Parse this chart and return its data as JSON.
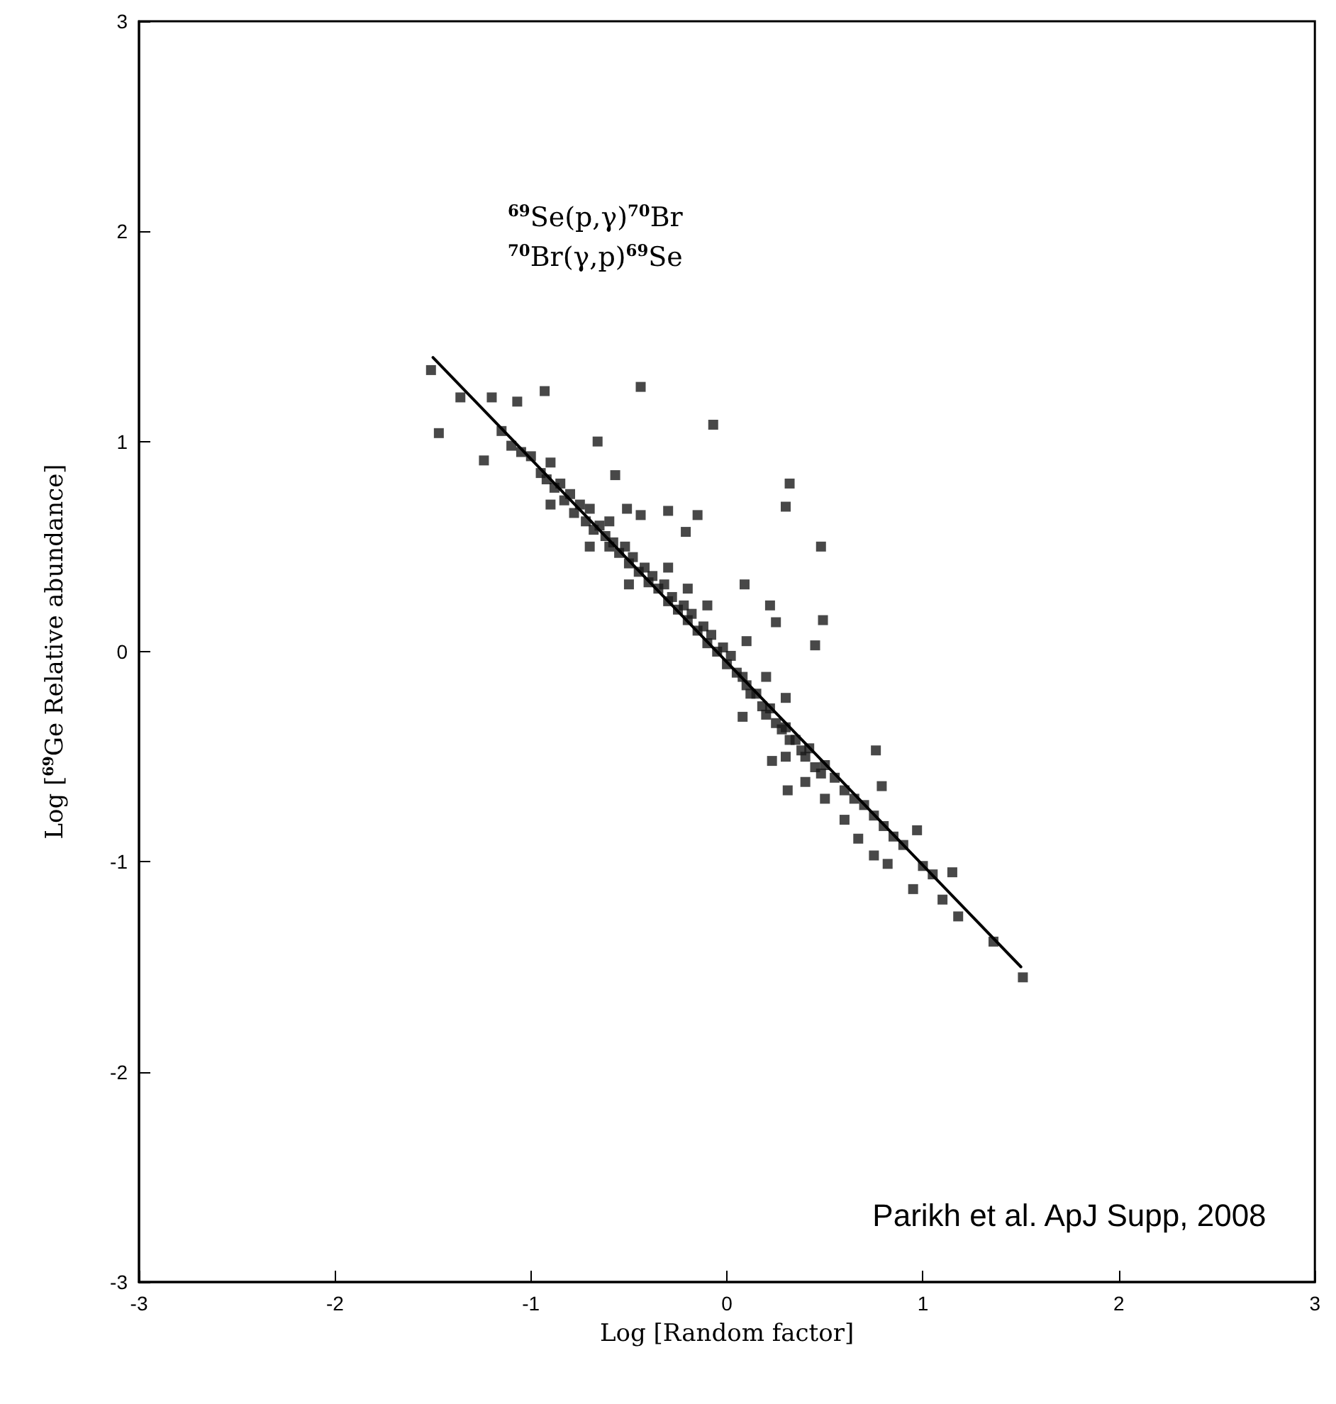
{
  "chart_data": {
    "type": "scatter",
    "xlabel": "Log [Random factor]",
    "ylabel": "Log [$^{69}$Ge Relative abundance]",
    "annotations": [
      "$^{69}$Se(p,γ)$^{70}$Br",
      "$^{70}$Br(γ,p)$^{69}$Se",
      "Parikh et al. ApJ Supp, 2008"
    ],
    "xlim": [
      -3,
      3
    ],
    "ylim": [
      -3,
      3
    ],
    "xticks": [
      -3,
      -2,
      -1,
      0,
      1,
      2,
      3
    ],
    "yticks": [
      -3,
      -2,
      -1,
      0,
      1,
      2,
      3
    ],
    "grid": false,
    "marker": "square",
    "series": [
      {
        "color": "#1a1a1a",
        "x": [
          -1.51,
          -1.47,
          -1.36,
          -1.2,
          -1.07,
          -0.93,
          -0.44,
          -0.07,
          -0.66,
          -1.24,
          -0.57,
          0.32,
          0.3,
          0.48,
          0.09,
          0.49,
          0.45,
          -0.3,
          -0.15,
          -0.21,
          -0.51,
          -0.44,
          0.22,
          0.25,
          0.76,
          0.08,
          0.23,
          0.31,
          0.79,
          0.97,
          0.67,
          0.75,
          0.82,
          0.95,
          1.15,
          1.1,
          1.18,
          1.36,
          1.51,
          -1.05,
          -1.0,
          -0.95,
          -0.92,
          -0.9,
          -0.88,
          -0.85,
          -0.83,
          -0.8,
          -0.78,
          -0.75,
          -0.72,
          -0.7,
          -0.68,
          -0.65,
          -0.62,
          -0.6,
          -0.58,
          -0.55,
          -0.52,
          -0.5,
          -0.48,
          -0.45,
          -0.42,
          -0.4,
          -0.38,
          -0.35,
          -0.32,
          -0.3,
          -0.28,
          -0.25,
          -0.22,
          -0.2,
          -0.18,
          -0.15,
          -0.12,
          -0.1,
          -0.08,
          -0.05,
          -0.02,
          0,
          0.02,
          0.05,
          0.08,
          0.1,
          0.12,
          0.15,
          0.18,
          0.2,
          0.22,
          0.25,
          0.28,
          0.3,
          0.32,
          0.35,
          0.38,
          0.4,
          0.42,
          0.45,
          0.48,
          0.5,
          0.55,
          0.6,
          0.65,
          0.7,
          0.75,
          0.8,
          0.85,
          0.9,
          1.0,
          1.05,
          -0.7,
          -0.5,
          -0.3,
          -0.1,
          0.1,
          0.2,
          0.3,
          0.4,
          0.5,
          0.6,
          0.3,
          -0.2,
          -0.6,
          -0.9,
          -1.1,
          -1.15
        ],
        "values": [
          1.34,
          1.04,
          1.21,
          1.21,
          1.19,
          1.24,
          1.26,
          1.08,
          1.0,
          0.91,
          0.84,
          0.8,
          0.69,
          0.5,
          0.32,
          0.15,
          0.03,
          0.67,
          0.65,
          0.57,
          0.68,
          0.65,
          0.22,
          0.14,
          -0.47,
          -0.31,
          -0.52,
          -0.66,
          -0.64,
          -0.85,
          -0.89,
          -0.97,
          -1.01,
          -1.13,
          -1.05,
          -1.18,
          -1.26,
          -1.38,
          -1.55,
          0.95,
          0.93,
          0.85,
          0.82,
          0.9,
          0.78,
          0.8,
          0.72,
          0.75,
          0.66,
          0.7,
          0.62,
          0.68,
          0.58,
          0.6,
          0.55,
          0.5,
          0.52,
          0.47,
          0.5,
          0.42,
          0.45,
          0.38,
          0.4,
          0.33,
          0.36,
          0.3,
          0.32,
          0.24,
          0.26,
          0.2,
          0.22,
          0.15,
          0.18,
          0.1,
          0.12,
          0.04,
          0.08,
          0.0,
          0.02,
          -0.06,
          -0.02,
          -0.1,
          -0.12,
          -0.16,
          -0.2,
          -0.2,
          -0.26,
          -0.3,
          -0.27,
          -0.34,
          -0.37,
          -0.36,
          -0.42,
          -0.42,
          -0.47,
          -0.5,
          -0.46,
          -0.55,
          -0.58,
          -0.54,
          -0.6,
          -0.66,
          -0.7,
          -0.73,
          -0.78,
          -0.83,
          -0.88,
          -0.92,
          -1.02,
          -1.06,
          0.5,
          0.32,
          0.4,
          0.22,
          0.05,
          -0.12,
          -0.22,
          -0.62,
          -0.7,
          -0.8,
          -0.5,
          0.3,
          0.62,
          0.7,
          0.98,
          1.05
        ]
      },
      {
        "type": "line",
        "color": "#000000",
        "marker": "none",
        "line_style": "solid",
        "x": [
          -1.5,
          1.5
        ],
        "values": [
          1.4,
          -1.5
        ]
      }
    ]
  }
}
